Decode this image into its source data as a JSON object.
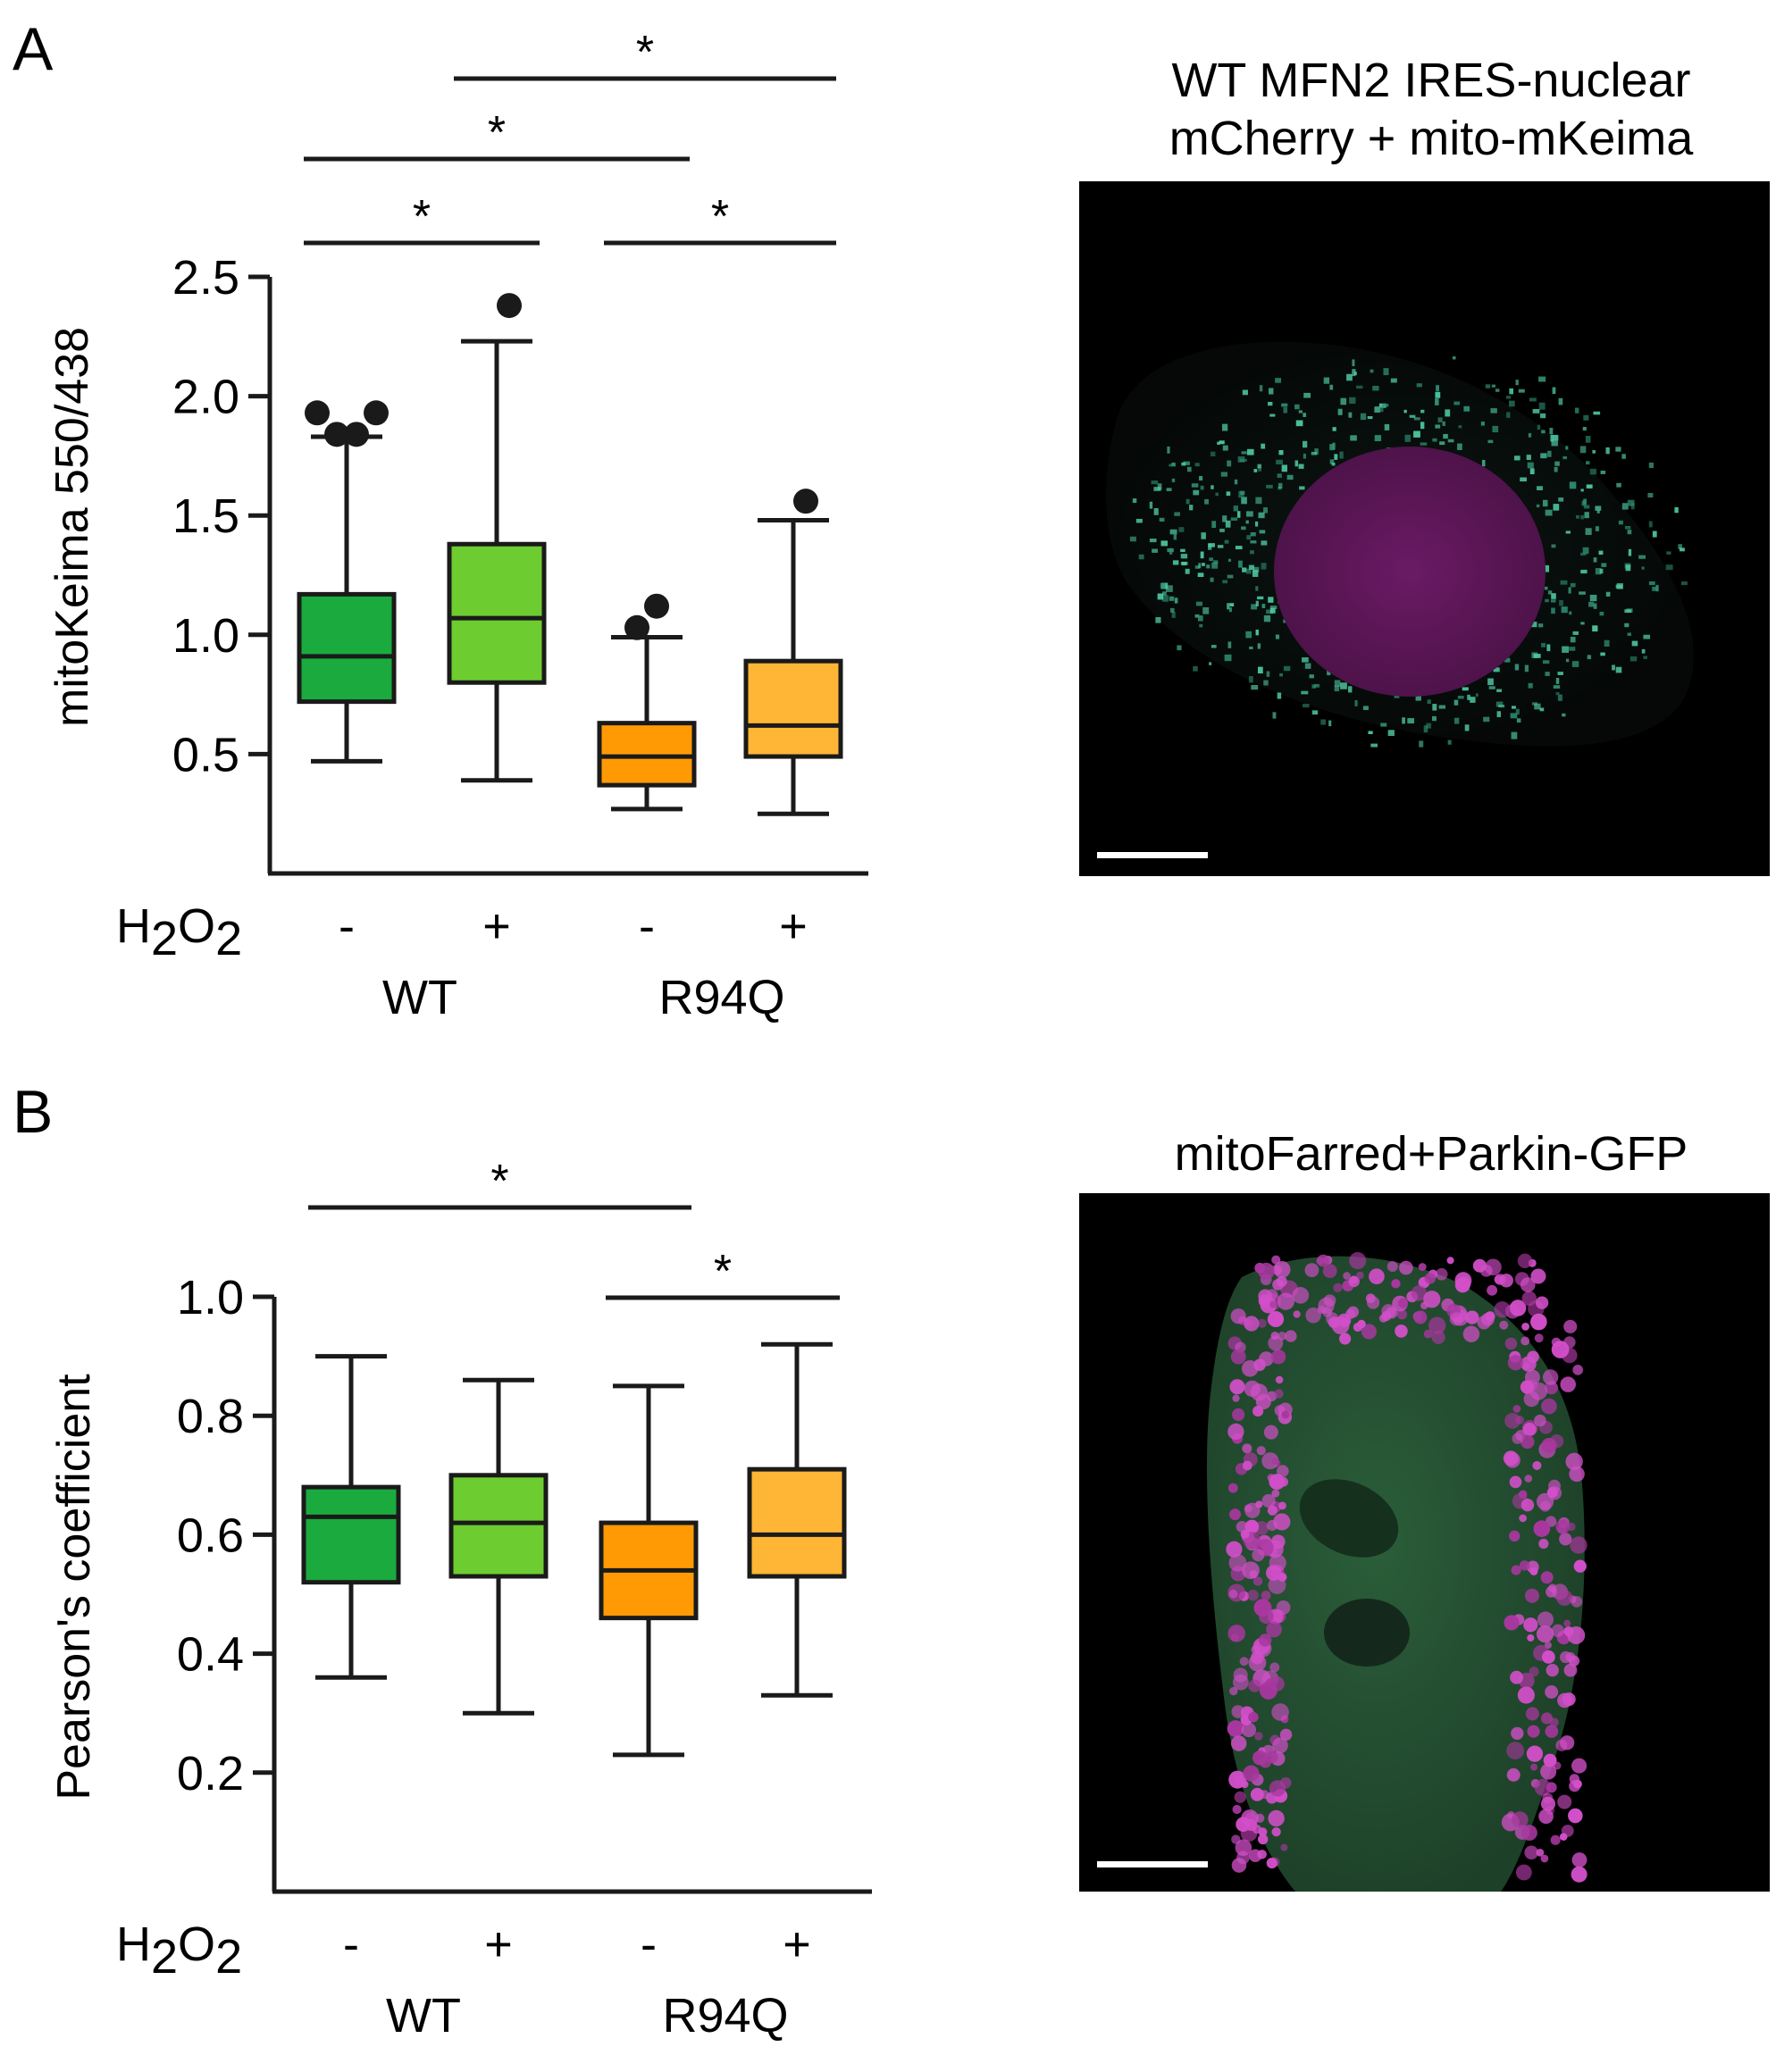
{
  "panels": [
    {
      "letter": "A",
      "image_title": [
        "WT MFN2 IRES-nuclear",
        "mCherry + mito-mKeima"
      ],
      "micrograph_icon": "mitokeima-cell-micrograph",
      "treatment": {
        "main": "H",
        "sub1": "2",
        "mid": "O",
        "sub2": "2"
      },
      "treatment_marks": [
        "-",
        "+",
        "-",
        "+"
      ],
      "genotypes": [
        "WT",
        "R94Q"
      ],
      "significance_symbol": "*",
      "chart_data": {
        "type": "box",
        "ylabel": "mitoKeima 550/438",
        "ylim": [
          0.0,
          2.5
        ],
        "yticks": [
          0.5,
          1.0,
          1.5,
          2.0,
          2.5
        ],
        "ytick_labels": [
          "0.5",
          "1.0",
          "1.5",
          "2.0",
          "2.5"
        ],
        "grid": false,
        "boxes": [
          {
            "group": "WT",
            "h2o2": "-",
            "color": "#1aaa3e",
            "whisker_low": 0.47,
            "q1": 0.72,
            "median": 0.91,
            "q3": 1.17,
            "whisker_high": 1.83,
            "outliers": [
              1.93,
              1.84,
              1.84,
              1.93
            ]
          },
          {
            "group": "WT",
            "h2o2": "+",
            "color": "#6dcc2f",
            "whisker_low": 0.39,
            "q1": 0.8,
            "median": 1.07,
            "q3": 1.38,
            "whisker_high": 2.23,
            "outliers": [
              2.38
            ]
          },
          {
            "group": "R94Q",
            "h2o2": "-",
            "color": "#ff9a05",
            "whisker_low": 0.27,
            "q1": 0.37,
            "median": 0.49,
            "q3": 0.63,
            "whisker_high": 0.99,
            "outliers": [
              1.03,
              1.12
            ]
          },
          {
            "group": "R94Q",
            "h2o2": "+",
            "color": "#ffb535",
            "whisker_low": 0.25,
            "q1": 0.49,
            "median": 0.62,
            "q3": 0.89,
            "whisker_high": 1.48,
            "outliers": [
              1.56
            ]
          }
        ],
        "significance": [
          {
            "from": 0,
            "to": 1
          },
          {
            "from": 2,
            "to": 3
          },
          {
            "from": 0,
            "to": 2
          },
          {
            "from": 1,
            "to": 3
          }
        ]
      }
    },
    {
      "letter": "B",
      "image_title": [
        "mitoFarred+Parkin-GFP"
      ],
      "micrograph_icon": "parkin-cell-micrograph",
      "treatment": {
        "main": "H",
        "sub1": "2",
        "mid": "O",
        "sub2": "2"
      },
      "treatment_marks": [
        "-",
        "+",
        "-",
        "+"
      ],
      "genotypes": [
        "WT",
        "R94Q"
      ],
      "significance_symbol": "*",
      "chart_data": {
        "type": "box",
        "ylabel": "Pearson's coefficient",
        "ylim": [
          0.0,
          1.0
        ],
        "yticks": [
          0.2,
          0.4,
          0.6,
          0.8,
          1.0
        ],
        "ytick_labels": [
          "0.2",
          "0.4",
          "0.6",
          "0.8",
          "1.0"
        ],
        "grid": false,
        "boxes": [
          {
            "group": "WT",
            "h2o2": "-",
            "color": "#1aaa3e",
            "whisker_low": 0.36,
            "q1": 0.52,
            "median": 0.63,
            "q3": 0.68,
            "whisker_high": 0.9,
            "outliers": []
          },
          {
            "group": "WT",
            "h2o2": "+",
            "color": "#6dcc2f",
            "whisker_low": 0.3,
            "q1": 0.53,
            "median": 0.62,
            "q3": 0.7,
            "whisker_high": 0.86,
            "outliers": []
          },
          {
            "group": "R94Q",
            "h2o2": "-",
            "color": "#ff9a05",
            "whisker_low": 0.23,
            "q1": 0.46,
            "median": 0.54,
            "q3": 0.62,
            "whisker_high": 0.85,
            "outliers": []
          },
          {
            "group": "R94Q",
            "h2o2": "+",
            "color": "#ffb535",
            "whisker_low": 0.33,
            "q1": 0.53,
            "median": 0.6,
            "q3": 0.71,
            "whisker_high": 0.92,
            "outliers": []
          }
        ],
        "significance": [
          {
            "from": 2,
            "to": 3
          },
          {
            "from": 0,
            "to": 2
          }
        ]
      }
    }
  ]
}
